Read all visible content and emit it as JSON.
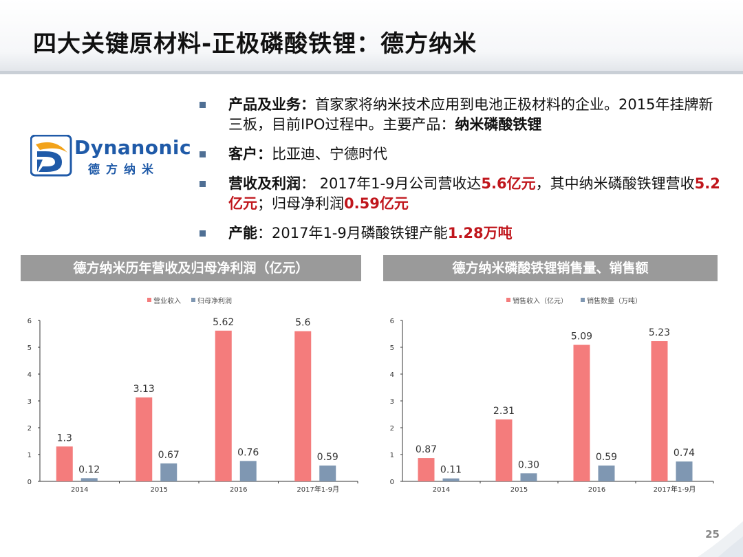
{
  "title": "四大关键原材料-正极磷酸铁锂：德方纳米",
  "logo": {
    "en": "Dynanonic",
    "cn": "德方纳米"
  },
  "bullets": [
    {
      "parts": [
        {
          "t": "产品及业务：",
          "s": "bold"
        },
        {
          "t": "首家家将纳米技术应用到电池正极材料的企业。2015年挂牌新三板，目前IPO过程中。主要产品：",
          "s": ""
        },
        {
          "t": "纳米磷酸铁锂",
          "s": "bold"
        }
      ]
    },
    {
      "parts": [
        {
          "t": "客户：",
          "s": "bold"
        },
        {
          "t": "比亚迪、宁德时代",
          "s": ""
        }
      ]
    },
    {
      "parts": [
        {
          "t": "营收及利润",
          "s": "bold"
        },
        {
          "t": "：  2017年1-9月公司营收达",
          "s": ""
        },
        {
          "t": "5.6亿元",
          "s": "red"
        },
        {
          "t": "，其中纳米磷酸铁锂营收",
          "s": ""
        },
        {
          "t": "5.2亿元",
          "s": "red"
        },
        {
          "t": "；归母净利润",
          "s": ""
        },
        {
          "t": "0.59亿元",
          "s": "red"
        }
      ]
    },
    {
      "parts": [
        {
          "t": "产能",
          "s": "bold"
        },
        {
          "t": "：2017年1-9月磷酸铁锂产能",
          "s": ""
        },
        {
          "t": "1.28万吨",
          "s": "red"
        }
      ]
    }
  ],
  "colors": {
    "series1": "#f47c7c",
    "series2": "#7f97b2",
    "header_bg": "#9a9a9a",
    "accent_red": "#c0161c"
  },
  "page_number": "25",
  "chart_data": [
    {
      "type": "bar",
      "title": "德方纳米历年营收及归母净利润（亿元）",
      "categories": [
        "2014",
        "2015",
        "2016",
        "2017年1-9月"
      ],
      "series": [
        {
          "name": "营业收入",
          "values": [
            1.3,
            3.13,
            5.62,
            5.6
          ],
          "labels": [
            "1.3",
            "3.13",
            "5.62",
            "5.6"
          ]
        },
        {
          "name": "归母净利润",
          "values": [
            0.12,
            0.67,
            0.76,
            0.59
          ],
          "labels": [
            "0.12",
            "0.67",
            "0.76",
            "0.59"
          ]
        }
      ],
      "ylim": [
        0,
        6
      ],
      "yticks": [
        "0",
        "1",
        "2",
        "3",
        "4",
        "5",
        "6"
      ],
      "legend": "top-center",
      "grid": false
    },
    {
      "type": "bar",
      "title": "德方纳米磷酸铁锂销售量、销售额",
      "categories": [
        "2014",
        "2015",
        "2016",
        "2017年1-9月"
      ],
      "series": [
        {
          "name": "销售收入（亿元）",
          "values": [
            0.87,
            2.31,
            5.09,
            5.23
          ],
          "labels": [
            "0.87",
            "2.31",
            "5.09",
            "5.23"
          ]
        },
        {
          "name": "销售数量（万吨）",
          "values": [
            0.11,
            0.3,
            0.59,
            0.74
          ],
          "labels": [
            "0.11",
            "0.30",
            "0.59",
            "0.74"
          ]
        }
      ],
      "ylim": [
        0,
        6
      ],
      "yticks": [
        "0",
        "1",
        "2",
        "3",
        "4",
        "5",
        "6"
      ],
      "legend": "top-center",
      "grid": false
    }
  ]
}
